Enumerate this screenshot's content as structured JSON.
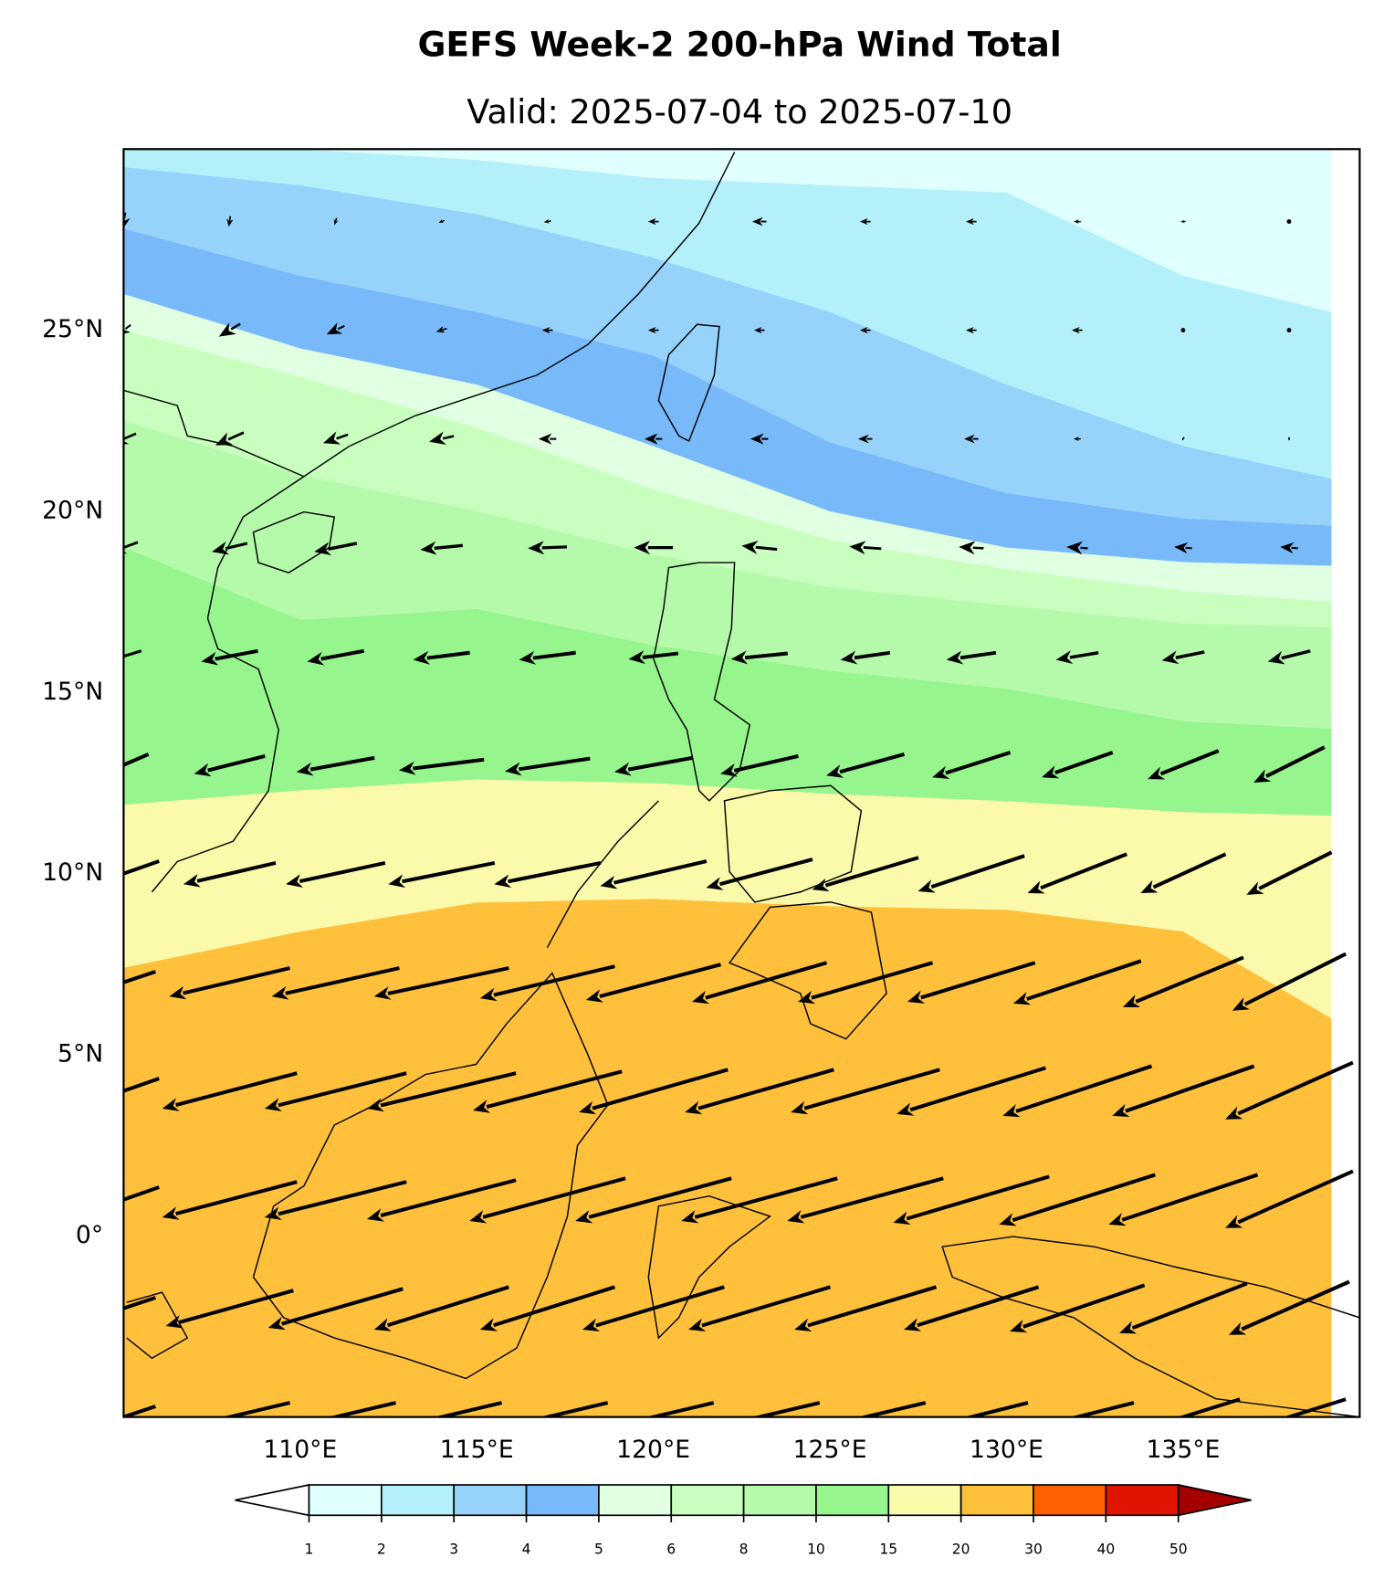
{
  "chart_data": {
    "type": "quiver",
    "title": "GEFS Week-2 200-hPa Wind Total",
    "subtitle": "Valid: 2025-07-04 to 2025-07-10",
    "xlim": [
      105,
      140
    ],
    "ylim": [
      -5,
      30
    ],
    "xticks": [
      {
        "value": 110,
        "label": "110°E"
      },
      {
        "value": 115,
        "label": "115°E"
      },
      {
        "value": 120,
        "label": "120°E"
      },
      {
        "value": 125,
        "label": "125°E"
      },
      {
        "value": 130,
        "label": "130°E"
      },
      {
        "value": 135,
        "label": "135°E"
      }
    ],
    "yticks": [
      {
        "value": 25,
        "label": "25°N"
      },
      {
        "value": 20,
        "label": "20°N"
      },
      {
        "value": 15,
        "label": "15°N"
      },
      {
        "value": 10,
        "label": "10°N"
      },
      {
        "value": 5,
        "label": "5°N"
      },
      {
        "value": 0,
        "label": "0°"
      }
    ],
    "contours": {
      "levels": [
        1,
        2,
        3,
        4,
        5,
        6,
        8,
        10,
        15,
        20,
        30,
        40,
        50
      ],
      "colors": [
        "#e0ffff",
        "#b4f0fa",
        "#96d2fa",
        "#78b9fa",
        "#e1ffe1",
        "#c8ffbe",
        "#b4faaa",
        "#96f58c",
        "#fafaaa",
        "#ffc03c",
        "#ff6000",
        "#e11400"
      ],
      "extend_colors": [
        "#ffffff",
        "#a50000"
      ],
      "boundaries": [
        {
          "level": 2,
          "lons": [
            105,
            110,
            115,
            120,
            125,
            130,
            135,
            139.2
          ],
          "lats": [
            30,
            30,
            29.7,
            29.2,
            29,
            28.8,
            26.5,
            25.5
          ]
        },
        {
          "level": 3,
          "lons": [
            105,
            110,
            115,
            120,
            125,
            130,
            135,
            139.2
          ],
          "lats": [
            29.5,
            29,
            28.2,
            27,
            25.5,
            23.5,
            21.8,
            20.9
          ]
        },
        {
          "level": 4,
          "lons": [
            105,
            110,
            115,
            120,
            125,
            130,
            135,
            139.2
          ],
          "lats": [
            27.8,
            26.5,
            25.5,
            24.3,
            21.9,
            20.5,
            19.8,
            19.6
          ]
        },
        {
          "level": 5,
          "lons": [
            105,
            110,
            115,
            120,
            125,
            130,
            135,
            139.2
          ],
          "lats": [
            26,
            24.5,
            23.5,
            21.8,
            20,
            19,
            18.6,
            18.5
          ]
        },
        {
          "level": 6,
          "lons": [
            105,
            110,
            115,
            120,
            125,
            130,
            135,
            139.2
          ],
          "lats": [
            25,
            23.7,
            22.3,
            20.6,
            19.2,
            18.4,
            17.8,
            17.5
          ]
        },
        {
          "level": 8,
          "lons": [
            105,
            110,
            115,
            120,
            125,
            130,
            135,
            139.2
          ],
          "lats": [
            22.5,
            21,
            20,
            18.8,
            17.9,
            17.4,
            16.9,
            16.8
          ]
        },
        {
          "level": 10,
          "lons": [
            105,
            110,
            115,
            120,
            125,
            130,
            135,
            139.2
          ],
          "lats": [
            19,
            17,
            17.3,
            16.3,
            15.6,
            15.1,
            14.2,
            14
          ]
        },
        {
          "level": 15,
          "lons": [
            105,
            110,
            115,
            120,
            125,
            130,
            135,
            139.2
          ],
          "lats": [
            11.9,
            12.3,
            12.6,
            12.5,
            12.2,
            12,
            11.7,
            11.6
          ]
        },
        {
          "level": 20,
          "lons": [
            105,
            110,
            115,
            120,
            125,
            130,
            135,
            139.2
          ],
          "lats": [
            7.4,
            8.4,
            9.2,
            9.3,
            9.1,
            9,
            8.4,
            6
          ]
        }
      ]
    },
    "vectors": {
      "lons": [
        105,
        108,
        111,
        114,
        117,
        120,
        123,
        126,
        129,
        132,
        135,
        138
      ],
      "lats": [
        28,
        25,
        22,
        19,
        16,
        13,
        10,
        7,
        4,
        1,
        -2,
        -5
      ],
      "u": [
        [
          -0.5,
          -0.2,
          -0.3,
          -0.8,
          -1,
          -1.5,
          -2,
          -1.5,
          -1.5,
          -1,
          -0.7,
          0
        ],
        [
          -2,
          -3,
          -2.5,
          -1.5,
          -1.5,
          -1.5,
          -1.5,
          -1.5,
          -1.5,
          -1.5,
          0,
          0
        ],
        [
          -3.5,
          -4,
          -3.5,
          -3.5,
          -2.5,
          -2.5,
          -2.5,
          -2,
          -2,
          -1,
          -0.3,
          0
        ],
        [
          -4,
          -5,
          -6,
          -6,
          -5.5,
          -5.5,
          -5,
          -4.5,
          -3.5,
          -3,
          -2.5,
          -2.5
        ],
        [
          -5,
          -8,
          -8,
          -8,
          -8,
          -7,
          -8,
          -7,
          -7,
          -6,
          -6,
          -6
        ],
        [
          -7,
          -10,
          -11,
          -12,
          -12,
          -11,
          -11,
          -11,
          -11,
          -10,
          -10,
          -10
        ],
        [
          -10,
          -13,
          -14,
          -15,
          -15,
          -15,
          -15,
          -15,
          -15,
          -14,
          -12,
          -12
        ],
        [
          -9,
          -17,
          -18,
          -19,
          -19,
          -19,
          -19,
          -19,
          -18,
          -18,
          -17,
          -16
        ],
        [
          -10,
          -19,
          -20,
          -21,
          -21,
          -21,
          -21,
          -21,
          -21,
          -21,
          -20,
          -18
        ],
        [
          -10,
          -19,
          -20,
          -21,
          -22,
          -22,
          -22,
          -22,
          -22,
          -22,
          -21,
          -18
        ],
        [
          -9,
          -18,
          -19,
          -19,
          -19,
          -20,
          -20,
          -20,
          -19,
          -19,
          -18,
          -17
        ],
        [
          -9,
          -17,
          -17,
          -17,
          -17,
          -17,
          -17,
          -17,
          -16,
          -16,
          -16,
          -16
        ]
      ],
      "v": [
        [
          -2.5,
          -1.5,
          -1,
          -0.3,
          -0.2,
          0,
          0,
          0,
          0,
          0,
          0,
          0
        ],
        [
          -1.5,
          -1.8,
          -1.2,
          -0.5,
          0,
          0,
          0,
          0,
          0,
          0,
          0,
          0
        ],
        [
          -1.5,
          -1.8,
          -1.2,
          -0.8,
          0,
          0,
          0,
          0,
          0,
          0,
          -0.5,
          -0.5
        ],
        [
          -1.5,
          -1.2,
          -1.2,
          -0.6,
          -0.2,
          0,
          0.5,
          0.3,
          0.2,
          0.2,
          0.2,
          0.2
        ],
        [
          -1.5,
          -1.5,
          -1.5,
          -1,
          -1,
          -0.8,
          -0.8,
          -1,
          -1,
          -1,
          -1.2,
          -1.5
        ],
        [
          -3,
          -2.5,
          -2,
          -1.5,
          -1.8,
          -2,
          -2.5,
          -3,
          -3.5,
          -3.5,
          -4,
          -5
        ],
        [
          -3.5,
          -3,
          -3,
          -3,
          -3,
          -3.5,
          -4,
          -4.5,
          -5,
          -5.5,
          -5.5,
          -6
        ],
        [
          -3,
          -4,
          -4,
          -4,
          -4.5,
          -5,
          -5.5,
          -5.5,
          -5.5,
          -6,
          -7,
          -8
        ],
        [
          -3.5,
          -5,
          -5,
          -5,
          -5.5,
          -6,
          -6,
          -6,
          -6.5,
          -7,
          -7,
          -8
        ],
        [
          -3.5,
          -5,
          -5,
          -5.5,
          -6,
          -6,
          -6,
          -6,
          -6.5,
          -7,
          -7,
          -8
        ],
        [
          -3,
          -5,
          -5.5,
          -6,
          -6,
          -6,
          -6,
          -6,
          -6,
          -6.5,
          -7,
          -7.5
        ],
        [
          -3,
          -4,
          -4,
          -4,
          -4,
          -4,
          -4,
          -4,
          -4,
          -4,
          -5,
          -5
        ]
      ]
    }
  }
}
